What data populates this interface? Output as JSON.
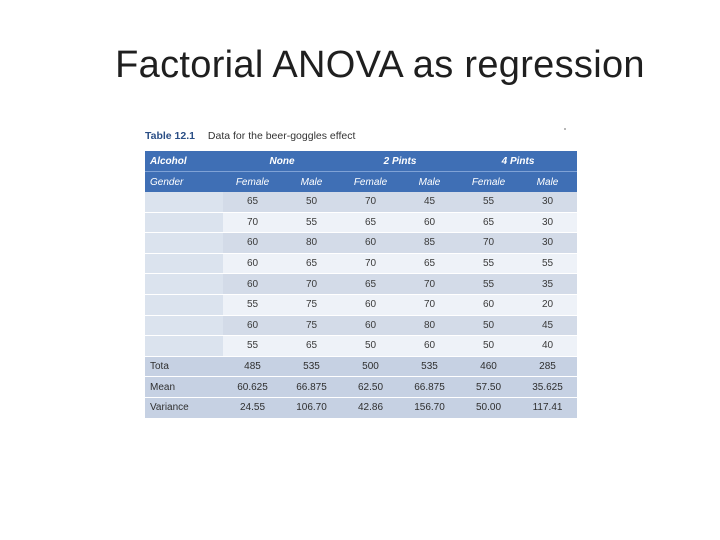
{
  "slide": {
    "title": "Factorial ANOVA as regression"
  },
  "table": {
    "caption_label": "Table 12.1",
    "caption_text": "Data for the beer-goggles effect",
    "row_header_alcohol": "Alcohol",
    "row_header_gender": "Gender",
    "groups": [
      "None",
      "2 Pints",
      "4 Pints"
    ],
    "genders": [
      "Female",
      "Male",
      "Female",
      "Male",
      "Female",
      "Male"
    ],
    "rows": [
      [
        "65",
        "50",
        "70",
        "45",
        "55",
        "30"
      ],
      [
        "70",
        "55",
        "65",
        "60",
        "65",
        "30"
      ],
      [
        "60",
        "80",
        "60",
        "85",
        "70",
        "30"
      ],
      [
        "60",
        "65",
        "70",
        "65",
        "55",
        "55"
      ],
      [
        "60",
        "70",
        "65",
        "70",
        "55",
        "35"
      ],
      [
        "55",
        "75",
        "60",
        "70",
        "60",
        "20"
      ],
      [
        "60",
        "75",
        "60",
        "80",
        "50",
        "45"
      ],
      [
        "55",
        "65",
        "50",
        "60",
        "50",
        "40"
      ]
    ],
    "summary": [
      {
        "label": "Tota",
        "values": [
          "485",
          "535",
          "500",
          "535",
          "460",
          "285"
        ]
      },
      {
        "label": "Mean",
        "values": [
          "60.625",
          "66.875",
          "62.50",
          "66.875",
          "57.50",
          "35.625"
        ]
      },
      {
        "label": "Variance",
        "values": [
          "24.55",
          "106.70",
          "42.86",
          "156.70",
          "50.00",
          "117.41"
        ]
      }
    ]
  }
}
